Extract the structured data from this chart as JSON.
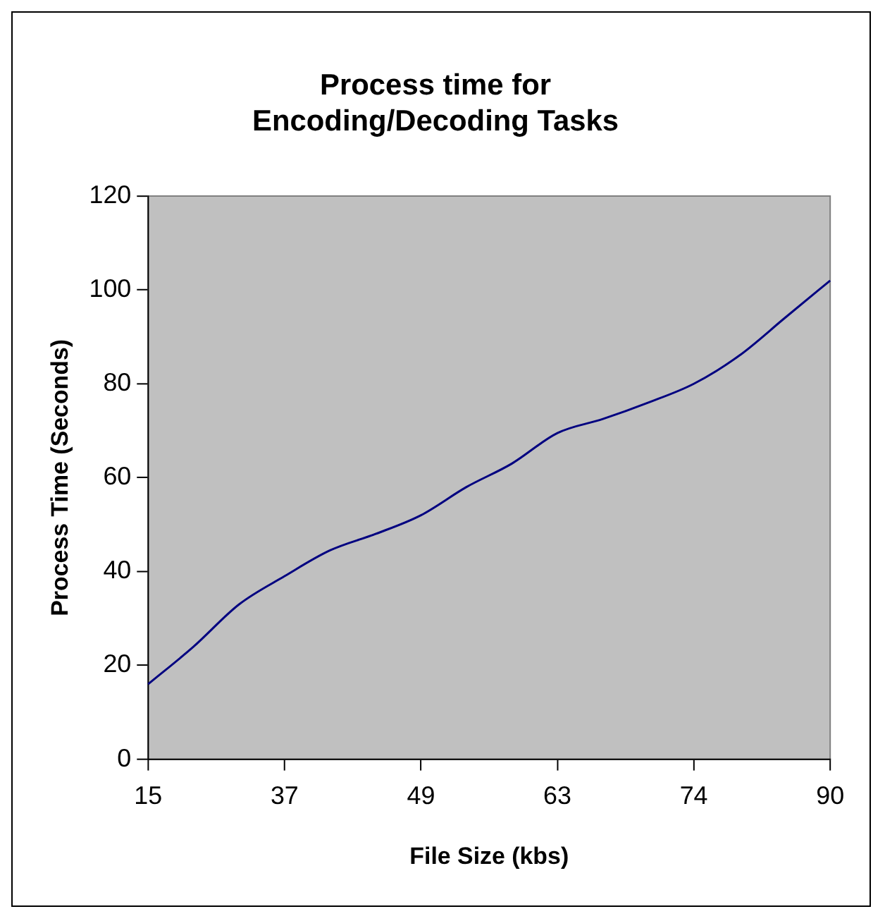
{
  "chart_data": {
    "type": "line",
    "title": [
      "Process time for",
      "Encoding/Decoding Tasks"
    ],
    "xlabel": "File Size (kbs)",
    "ylabel": "Process Time (Seconds)",
    "categories": [
      "15",
      null,
      null,
      "37",
      null,
      null,
      "49",
      null,
      null,
      "63",
      null,
      null,
      "74",
      null,
      null,
      "90"
    ],
    "series": [
      {
        "color": "#000080",
        "values": [
          16,
          24,
          33,
          39,
          44.5,
          48,
          52,
          58,
          63,
          69.5,
          72.5,
          76,
          80,
          86,
          94,
          102
        ]
      }
    ],
    "ylim": [
      0,
      120
    ],
    "yticks": [
      0,
      20,
      40,
      60,
      80,
      100,
      120
    ],
    "grid": false,
    "legend": false,
    "marker": "none",
    "line_style": "solid"
  }
}
